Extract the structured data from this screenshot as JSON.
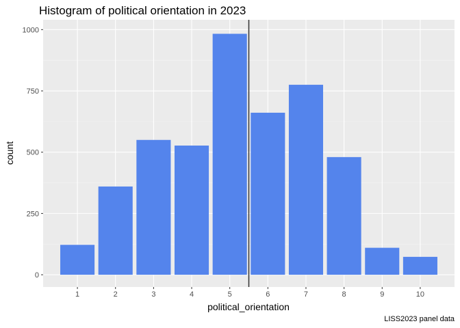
{
  "chart_data": {
    "type": "bar",
    "title": "Histogram of political orientation in 2023",
    "xlabel": "political_orientation",
    "ylabel": "count",
    "caption": "LISS2023 panel data",
    "categories": [
      "1",
      "2",
      "3",
      "4",
      "5",
      "6",
      "7",
      "8",
      "9",
      "10"
    ],
    "values": [
      122,
      360,
      550,
      527,
      983,
      661,
      775,
      480,
      110,
      73
    ],
    "yticks": [
      0,
      250,
      500,
      750,
      1000
    ],
    "ytick_labels": [
      "0",
      "250",
      "500",
      "750",
      "1000"
    ],
    "ylim": [
      -50,
      1040
    ],
    "xlim": [
      0.1,
      10.9
    ],
    "vline_x": 5.5,
    "grid": true,
    "colors": {
      "bar": "#5484EC",
      "panel": "#EBEBEB",
      "grid_major": "#FFFFFF",
      "grid_minor": "#F5F5F5",
      "vline": "#333333"
    }
  }
}
